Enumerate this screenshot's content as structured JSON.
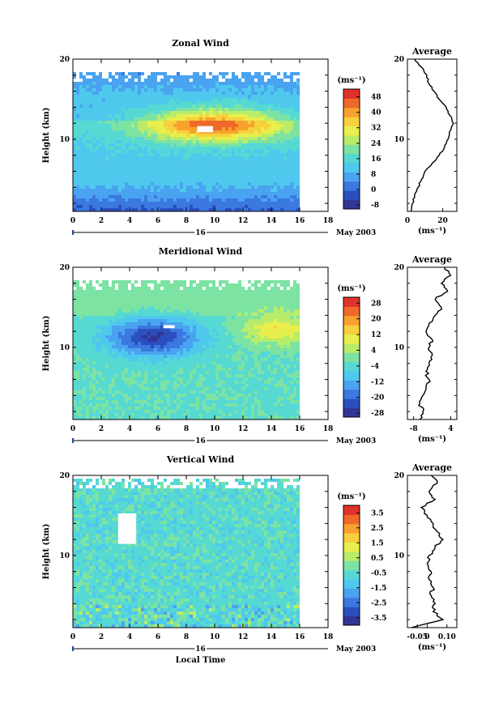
{
  "chart_data": [
    {
      "type": "heatmap",
      "title": "Zonal Wind",
      "ylabel": "Height (km)",
      "xlabel": "",
      "x_ticks": [
        "0",
        "2",
        "4",
        "6",
        "8",
        "10",
        "12",
        "14",
        "16",
        "18"
      ],
      "xlim": [
        0,
        18
      ],
      "y_ticks": [
        "10",
        "20"
      ],
      "ylim": [
        1,
        20
      ],
      "date_day": "16",
      "date_month": "May 2003",
      "colorbar": {
        "unit": "(ms⁻¹)",
        "ticks": [
          "-8",
          "0",
          "8",
          "16",
          "24",
          "32",
          "40",
          "48"
        ],
        "range": [
          -10,
          52
        ]
      },
      "average_panel": {
        "title": "Average",
        "x_ticks": [
          "0",
          "20"
        ],
        "xlim": [
          0,
          28
        ],
        "xlabel": "(ms⁻¹)",
        "y_ticks": [
          "10",
          "20"
        ],
        "ylim": [
          1,
          20
        ],
        "profile": [
          {
            "h": 1,
            "v": 2
          },
          {
            "h": 2,
            "v": 3
          },
          {
            "h": 3,
            "v": 4
          },
          {
            "h": 4,
            "v": 6
          },
          {
            "h": 5,
            "v": 8
          },
          {
            "h": 6,
            "v": 10
          },
          {
            "h": 7,
            "v": 14
          },
          {
            "h": 8,
            "v": 18
          },
          {
            "h": 9,
            "v": 21
          },
          {
            "h": 10,
            "v": 23
          },
          {
            "h": 11,
            "v": 24
          },
          {
            "h": 12,
            "v": 26
          },
          {
            "h": 13,
            "v": 24
          },
          {
            "h": 14,
            "v": 22
          },
          {
            "h": 15,
            "v": 18
          },
          {
            "h": 16,
            "v": 15
          },
          {
            "h": 17,
            "v": 12
          },
          {
            "h": 18,
            "v": 11
          },
          {
            "h": 19,
            "v": 8
          },
          {
            "h": 20,
            "v": 4
          }
        ]
      }
    },
    {
      "type": "heatmap",
      "title": "Meridional Wind",
      "ylabel": "Height (km)",
      "xlabel": "",
      "x_ticks": [
        "0",
        "2",
        "4",
        "6",
        "8",
        "10",
        "12",
        "14",
        "16",
        "18"
      ],
      "xlim": [
        0,
        18
      ],
      "y_ticks": [
        "10",
        "20"
      ],
      "ylim": [
        1,
        20
      ],
      "date_day": "16",
      "date_month": "May 2003",
      "colorbar": {
        "unit": "(ms⁻¹)",
        "ticks": [
          "-28",
          "-20",
          "-12",
          "-4",
          "4",
          "12",
          "20",
          "28"
        ],
        "range": [
          -30,
          31
        ]
      },
      "average_panel": {
        "title": "Average",
        "x_ticks": [
          "-8",
          "4"
        ],
        "xlim": [
          -10,
          6
        ],
        "xlabel": "(ms⁻¹)",
        "y_ticks": [
          "10",
          "20"
        ],
        "ylim": [
          1,
          20
        ],
        "profile": [
          {
            "h": 1,
            "v": -6
          },
          {
            "h": 2,
            "v": -5
          },
          {
            "h": 3,
            "v": -6
          },
          {
            "h": 4,
            "v": -5
          },
          {
            "h": 5,
            "v": -4
          },
          {
            "h": 6,
            "v": -3
          },
          {
            "h": 7,
            "v": -4
          },
          {
            "h": 8,
            "v": -3
          },
          {
            "h": 9,
            "v": -2
          },
          {
            "h": 10,
            "v": -3
          },
          {
            "h": 11,
            "v": -2
          },
          {
            "h": 12,
            "v": -4
          },
          {
            "h": 13,
            "v": -3
          },
          {
            "h": 14,
            "v": -1
          },
          {
            "h": 15,
            "v": 1
          },
          {
            "h": 16,
            "v": -1
          },
          {
            "h": 17,
            "v": 3
          },
          {
            "h": 18,
            "v": 1
          },
          {
            "h": 19,
            "v": 4
          },
          {
            "h": 20,
            "v": 2
          }
        ]
      }
    },
    {
      "type": "heatmap",
      "title": "Vertical Wind",
      "ylabel": "Height (km)",
      "xlabel": "Local Time",
      "x_ticks": [
        "0",
        "2",
        "4",
        "6",
        "8",
        "10",
        "12",
        "14",
        "16",
        "18"
      ],
      "xlim": [
        0,
        18
      ],
      "y_ticks": [
        "10",
        "20"
      ],
      "ylim": [
        1,
        20
      ],
      "date_day": "16",
      "date_month": "May 2003",
      "colorbar": {
        "unit": "(ms⁻¹)",
        "ticks": [
          "-3.5",
          "-2.5",
          "-1.5",
          "-0.5",
          "0.5",
          "1.5",
          "2.5",
          "3.5"
        ],
        "range": [
          -4,
          4
        ]
      },
      "average_panel": {
        "title": "Average",
        "x_ticks": [
          "-0.05",
          "0",
          "0.10"
        ],
        "xlim": [
          -0.1,
          0.15
        ],
        "xlabel": "(ms⁻¹)",
        "y_ticks": [
          "10",
          "20"
        ],
        "ylim": [
          1,
          20
        ],
        "profile": [
          {
            "h": 1,
            "v": -0.08
          },
          {
            "h": 2,
            "v": 0.08
          },
          {
            "h": 3,
            "v": 0.03
          },
          {
            "h": 4,
            "v": 0.04
          },
          {
            "h": 5,
            "v": 0.02
          },
          {
            "h": 6,
            "v": 0.03
          },
          {
            "h": 7,
            "v": 0.01
          },
          {
            "h": 8,
            "v": 0.02
          },
          {
            "h": 9,
            "v": 0.0
          },
          {
            "h": 10,
            "v": 0.01
          },
          {
            "h": 11,
            "v": 0.04
          },
          {
            "h": 12,
            "v": 0.08
          },
          {
            "h": 13,
            "v": 0.05
          },
          {
            "h": 14,
            "v": 0.03
          },
          {
            "h": 15,
            "v": 0.0
          },
          {
            "h": 16,
            "v": -0.03
          },
          {
            "h": 17,
            "v": 0.04
          },
          {
            "h": 18,
            "v": 0.01
          },
          {
            "h": 19,
            "v": 0.05
          },
          {
            "h": 20,
            "v": 0.02
          }
        ]
      }
    }
  ],
  "colors": {
    "colormap": [
      "#313695",
      "#2b4fbf",
      "#3b78e0",
      "#4aa3f0",
      "#4fc8ee",
      "#56d9d3",
      "#7ce3a3",
      "#b8ec6a",
      "#e8ef4c",
      "#f8d03c",
      "#f8a22e",
      "#ef6a2a",
      "#e0322a"
    ]
  }
}
